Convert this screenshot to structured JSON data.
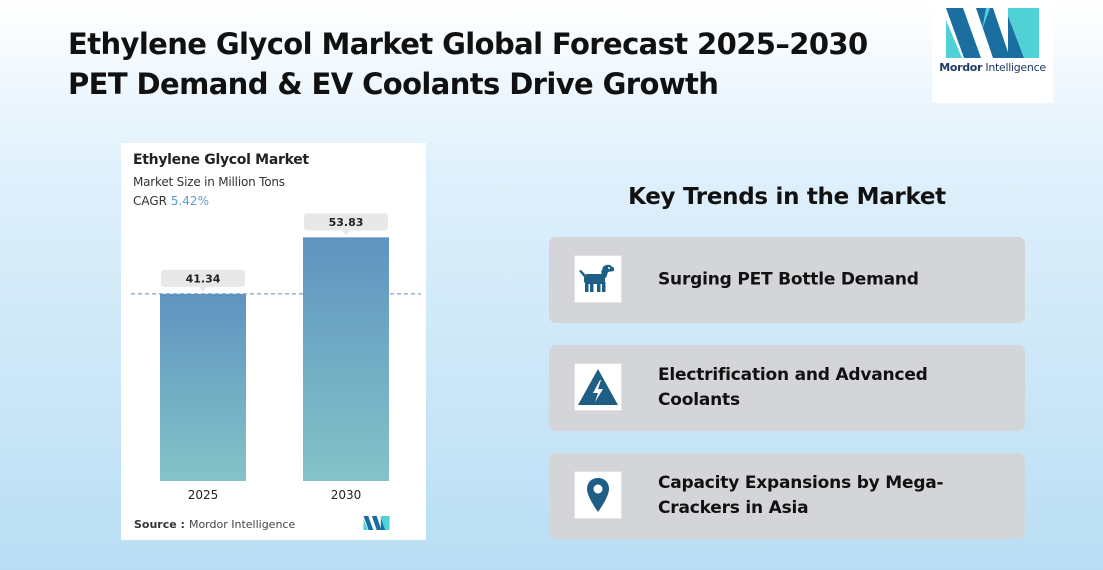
{
  "header": {
    "title_line1": "Ethylene Glycol Market Global Forecast 2025–2030",
    "title_line2": "PET Demand & EV Coolants Drive Growth"
  },
  "logo": {
    "brand_strong": "Mordor",
    "brand_rest": " Intelligence",
    "colors": {
      "blue": "#1a6fa0",
      "teal": "#4fd1d6"
    }
  },
  "chart_card": {
    "title": "Ethylene Glycol Market",
    "subtitle": "Market Size in Million Tons",
    "cagr_label": "CAGR",
    "cagr_value": "5.42%",
    "source_label": "Source :",
    "source_value": "Mordor Intelligence"
  },
  "chart_data": {
    "type": "bar",
    "title": "Ethylene Glycol Market",
    "ylabel": "Market Size in Million Tons",
    "categories": [
      "2025",
      "2030"
    ],
    "values": [
      41.34,
      53.83
    ],
    "value_labels": [
      "41.34",
      "53.83"
    ],
    "ylim": [
      0,
      57
    ],
    "grid": false,
    "reference_line_at": 41.34,
    "colors": {
      "bar_top": "#5f94c0",
      "bar_bottom": "#84c3c8",
      "label_bg": "#e8e8e8"
    }
  },
  "trends": {
    "heading": "Key Trends in the Market",
    "items": [
      {
        "label": "Surging PET Bottle Demand",
        "icon": "dog-icon"
      },
      {
        "label": "Electrification and Advanced Coolants",
        "icon": "lightning-warning-icon"
      },
      {
        "label": "Capacity Expansions by Mega-Crackers in Asia",
        "icon": "location-pin-icon"
      }
    ],
    "icon_color": "#1f5f86"
  }
}
